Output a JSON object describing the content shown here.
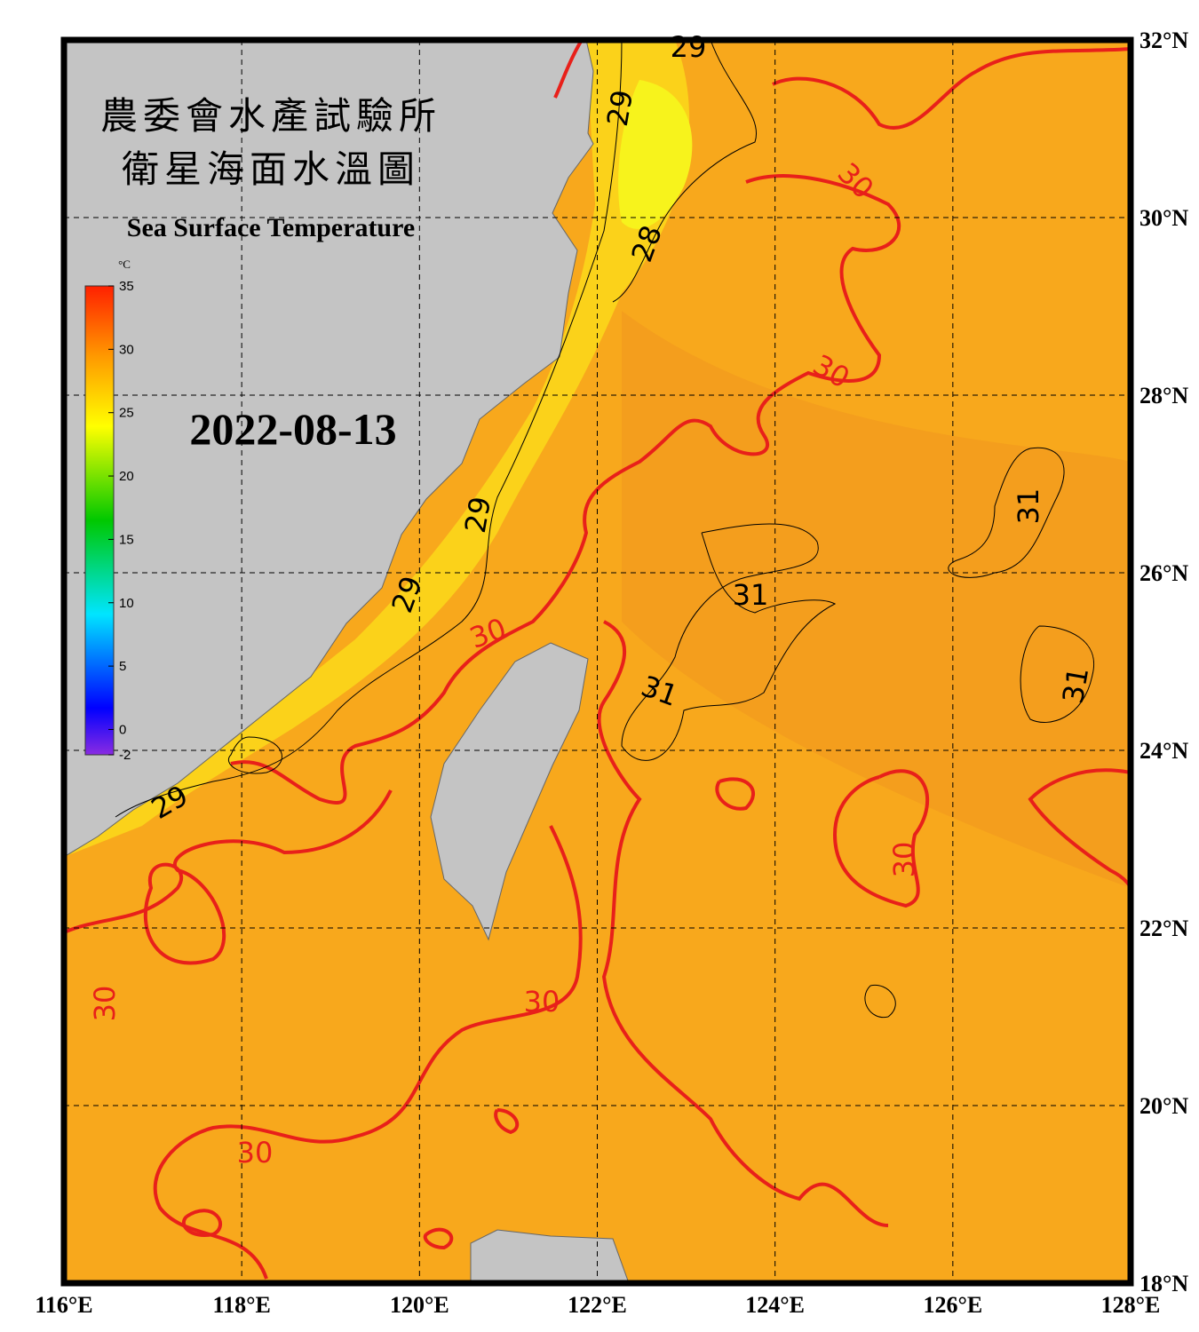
{
  "header": {
    "title_lines": [
      "農委會水產試驗所",
      "衛星海面水溫圖"
    ],
    "subtitle": "Sea Surface Temperature",
    "date": "2022-08-13"
  },
  "colorbar": {
    "unit": "°C",
    "range": [
      -2,
      35
    ],
    "ticks": [
      35,
      30,
      25,
      20,
      15,
      10,
      5,
      0,
      -2
    ]
  },
  "map": {
    "lon_range": [
      116,
      128
    ],
    "lat_range": [
      18,
      32
    ],
    "lon_ticks": [
      {
        "value": 116,
        "label": "116°E"
      },
      {
        "value": 118,
        "label": "118°E"
      },
      {
        "value": 120,
        "label": "120°E"
      },
      {
        "value": 122,
        "label": "122°E"
      },
      {
        "value": 124,
        "label": "124°E"
      },
      {
        "value": 126,
        "label": "126°E"
      },
      {
        "value": 128,
        "label": "128°E"
      }
    ],
    "lat_ticks": [
      {
        "value": 18,
        "label": "18°N"
      },
      {
        "value": 20,
        "label": "20°N"
      },
      {
        "value": 22,
        "label": "22°N"
      },
      {
        "value": 24,
        "label": "24°N"
      },
      {
        "value": 26,
        "label": "26°N"
      },
      {
        "value": 28,
        "label": "28°N"
      },
      {
        "value": 30,
        "label": "30°N"
      },
      {
        "value": 32,
        "label": "32°N"
      }
    ],
    "contour_labels": [
      {
        "text": "29",
        "color": "#000000"
      },
      {
        "text": "29",
        "color": "#000000"
      },
      {
        "text": "30",
        "color": "#e8201a"
      },
      {
        "text": "28",
        "color": "#000000"
      },
      {
        "text": "30",
        "color": "#e8201a"
      },
      {
        "text": "29",
        "color": "#000000"
      },
      {
        "text": "29",
        "color": "#000000"
      },
      {
        "text": "30",
        "color": "#e8201a"
      },
      {
        "text": "31",
        "color": "#000000"
      },
      {
        "text": "31",
        "color": "#000000"
      },
      {
        "text": "31",
        "color": "#000000"
      },
      {
        "text": "31",
        "color": "#000000"
      },
      {
        "text": "29",
        "color": "#000000"
      },
      {
        "text": "30",
        "color": "#e8201a"
      },
      {
        "text": "30",
        "color": "#e8201a"
      },
      {
        "text": "30",
        "color": "#e8201a"
      },
      {
        "text": "30",
        "color": "#e8201a"
      }
    ]
  }
}
